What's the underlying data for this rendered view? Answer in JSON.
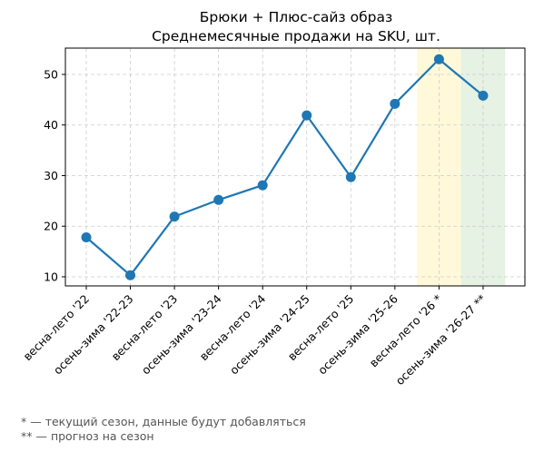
{
  "chart_data": {
    "type": "line",
    "title": "Брюки + Плюс-сайз образ",
    "subtitle": "Среднемесячные продажи на SKU, шт.",
    "categories": [
      "весна-лето '22",
      "осень-зима '22-23",
      "весна-лето '23",
      "осень-зима '23-24",
      "весна-лето '24",
      "осень-зима '24-25",
      "весна-лето '25",
      "осень-зима '25-26",
      "весна-лето '26 *",
      "осень-зима '26-27 **"
    ],
    "series": [
      {
        "values": [
          17.8,
          10.3,
          21.9,
          25.2,
          28.1,
          41.9,
          29.7,
          44.2,
          53.0,
          45.8
        ]
      }
    ],
    "ylim": [
      8.2,
      55.2
    ],
    "yticks": [
      10,
      20,
      30,
      40,
      50
    ],
    "grid": true,
    "highlights": [
      {
        "category_index": 8,
        "color": "#fff9d9"
      },
      {
        "category_index": 9,
        "color": "#e6f2e3"
      }
    ],
    "line_color": "#1f77b4",
    "footnotes": [
      "* — текущий сезон, данные будут добавляться",
      "** — прогноз на сезон"
    ]
  }
}
